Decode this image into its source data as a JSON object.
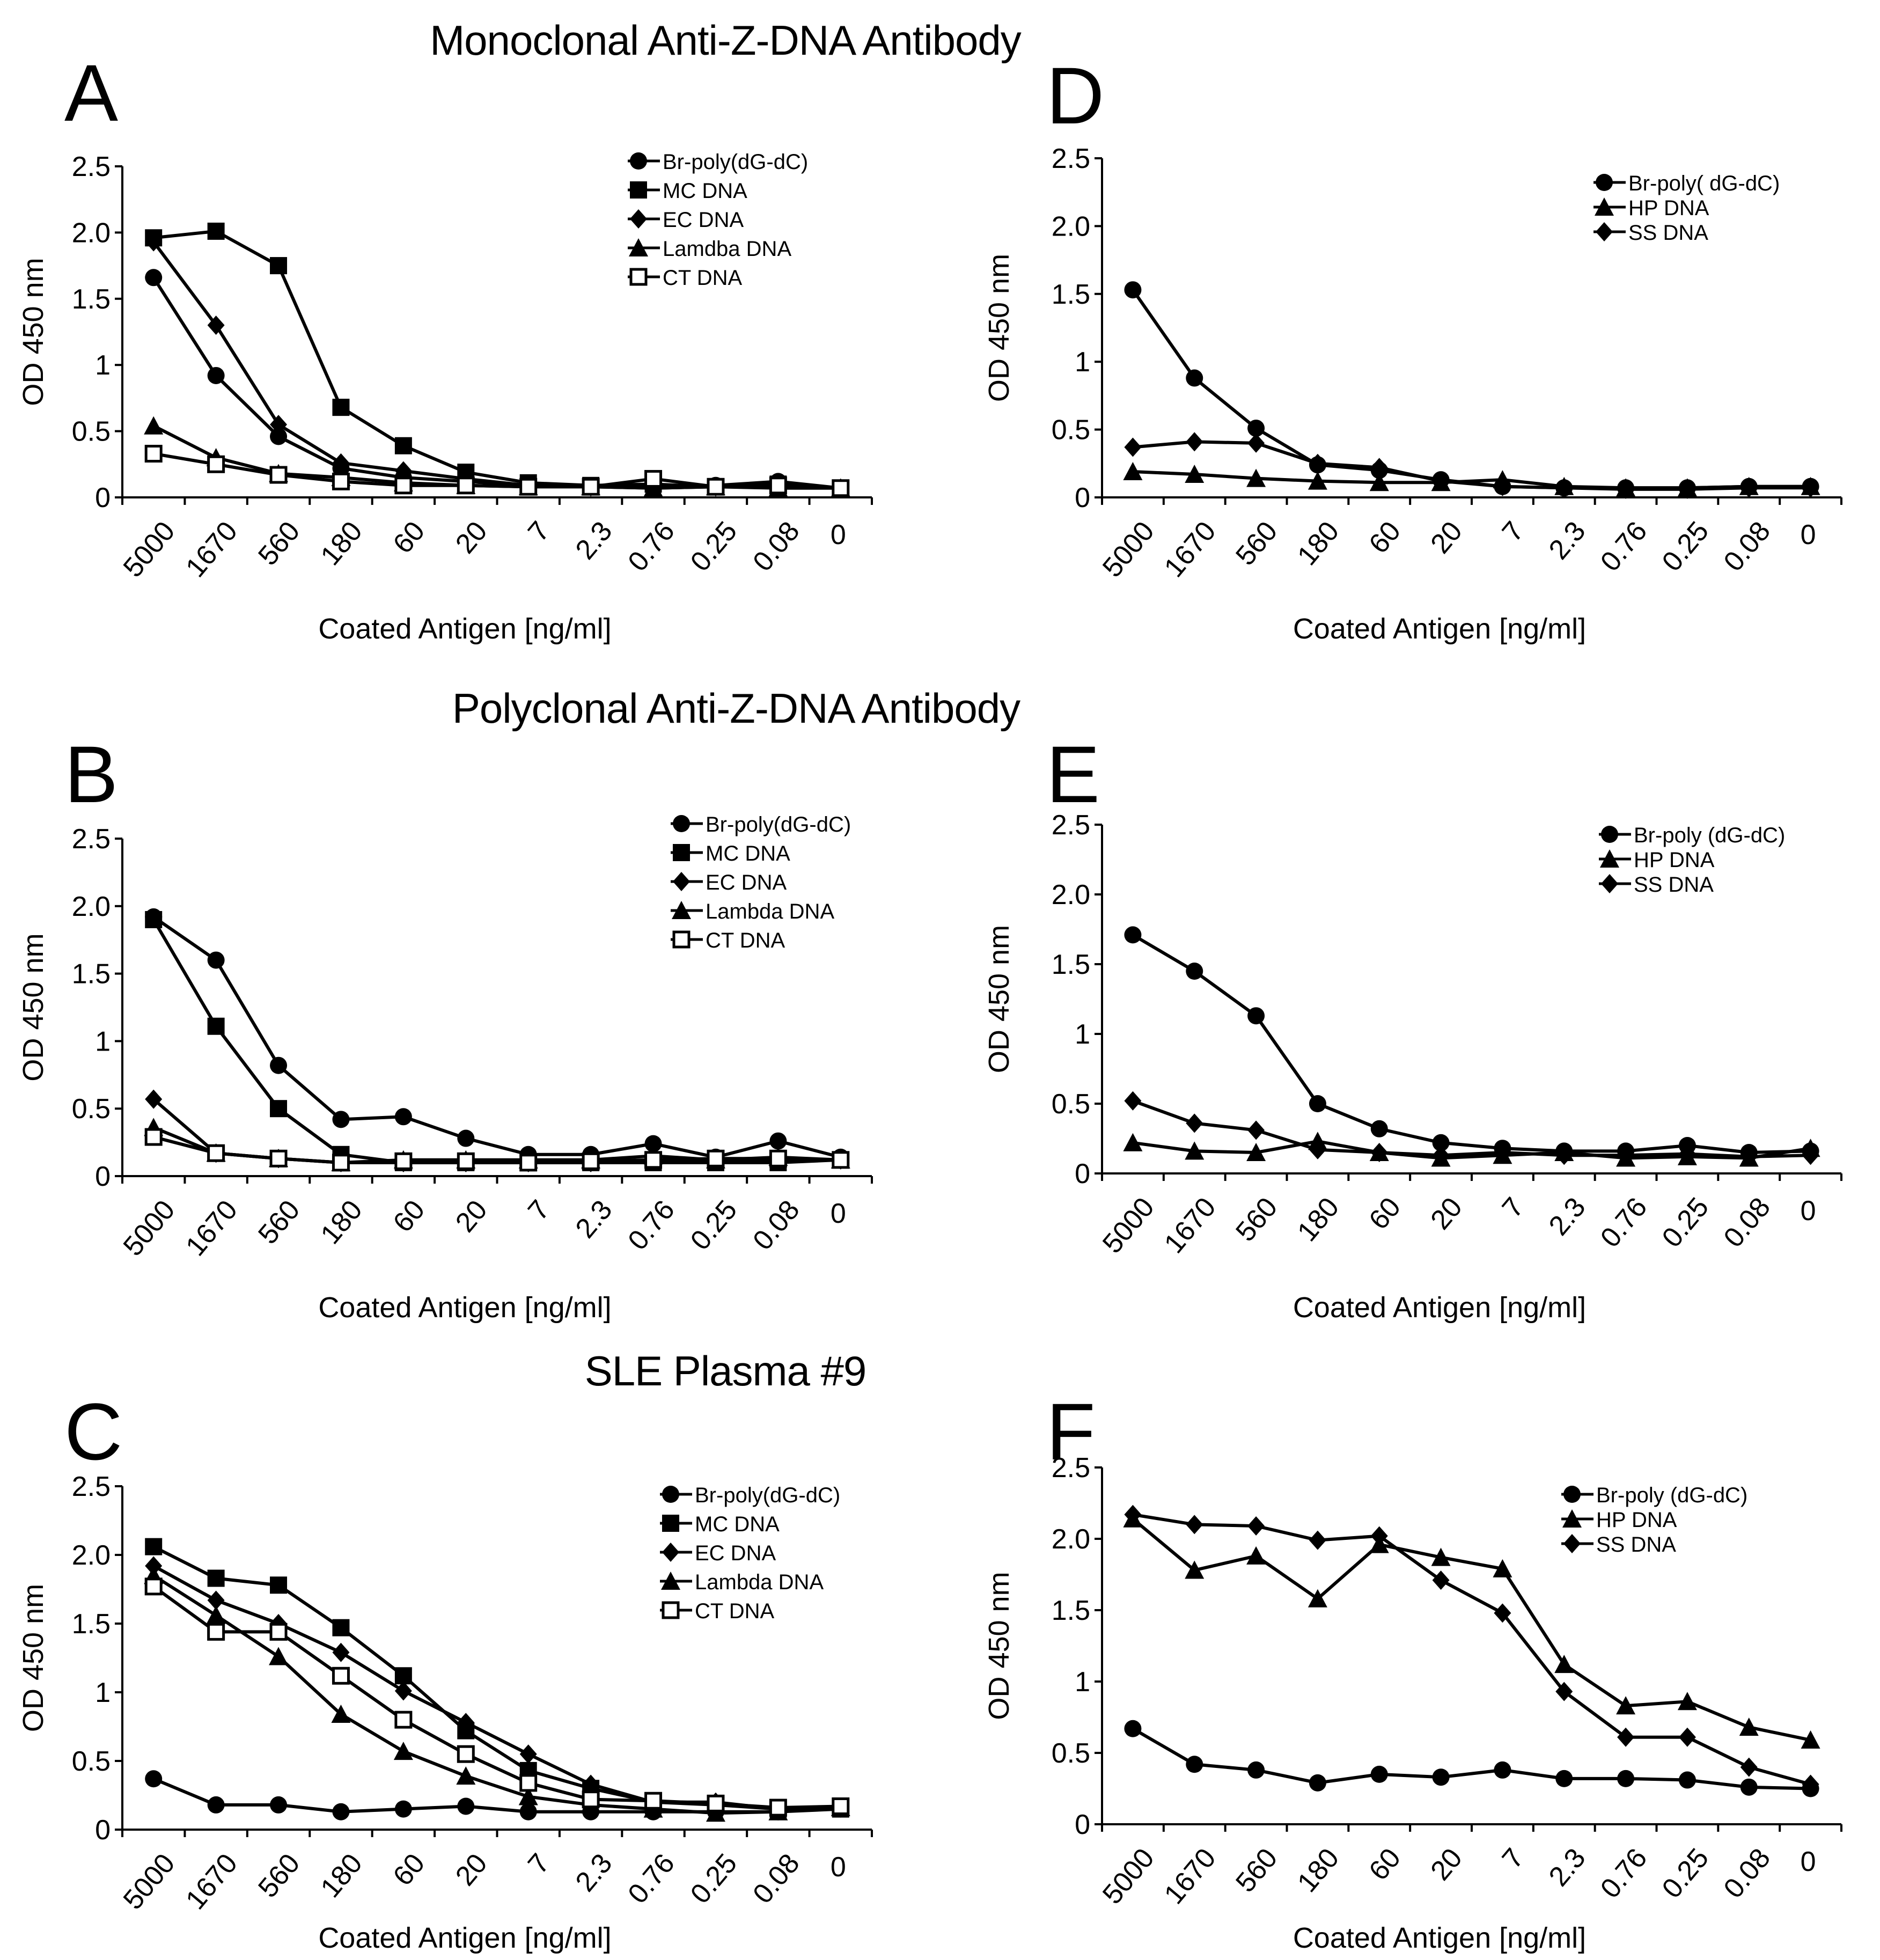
{
  "sections": {
    "mono": "Monoclonal Anti-Z-DNA Antibody",
    "poly": "Polyclonal Anti-Z-DNA Antibody",
    "sle": "SLE Plasma #9"
  },
  "chart_data": [
    {
      "panel": "A",
      "type": "line",
      "xlabel": "Coated Antigen [ng/ml]",
      "ylabel": "OD 450 nm",
      "categories": [
        "5000",
        "1670",
        "560",
        "180",
        "60",
        "20",
        "7",
        "2.3",
        "0.76",
        "0.25",
        "0.08",
        "0"
      ],
      "yticks": [
        "0",
        "0.5",
        "1",
        "1.5",
        "2.0",
        "2.5"
      ],
      "ylim": [
        0,
        2.5
      ],
      "series": [
        {
          "name": "Br-poly(dG-dC)",
          "marker": "circle",
          "values": [
            1.66,
            0.92,
            0.46,
            0.22,
            0.15,
            0.12,
            0.09,
            0.08,
            0.08,
            0.09,
            0.12,
            0.07
          ]
        },
        {
          "name": "MC DNA",
          "marker": "square",
          "values": [
            1.96,
            2.01,
            1.75,
            0.68,
            0.39,
            0.19,
            0.11,
            0.09,
            0.1,
            0.08,
            0.1,
            0.07
          ]
        },
        {
          "name": "EC DNA",
          "marker": "diamond",
          "values": [
            1.93,
            1.3,
            0.55,
            0.26,
            0.2,
            0.14,
            0.09,
            0.08,
            0.07,
            0.08,
            0.08,
            0.07
          ]
        },
        {
          "name": "Lamdba DNA",
          "marker": "triangle",
          "values": [
            0.54,
            0.3,
            0.18,
            0.15,
            0.11,
            0.09,
            0.08,
            0.08,
            0.07,
            0.08,
            0.07,
            0.07
          ]
        },
        {
          "name": "CT DNA",
          "marker": "open-square",
          "values": [
            0.33,
            0.25,
            0.17,
            0.12,
            0.09,
            0.09,
            0.08,
            0.08,
            0.14,
            0.08,
            0.09,
            0.07
          ]
        }
      ]
    },
    {
      "panel": "B",
      "type": "line",
      "xlabel": "Coated Antigen [ng/ml]",
      "ylabel": "OD 450 nm",
      "categories": [
        "5000",
        "1670",
        "560",
        "180",
        "60",
        "20",
        "7",
        "2.3",
        "0.76",
        "0.25",
        "0.08",
        "0"
      ],
      "yticks": [
        "0",
        "0.5",
        "1",
        "1.5",
        "2.0",
        "2.5"
      ],
      "ylim": [
        0,
        2.5
      ],
      "series": [
        {
          "name": "Br-poly(dG-dC)",
          "marker": "circle",
          "values": [
            1.92,
            1.6,
            0.82,
            0.42,
            0.44,
            0.28,
            0.16,
            0.16,
            0.24,
            0.14,
            0.26,
            0.14
          ]
        },
        {
          "name": "MC DNA",
          "marker": "square",
          "values": [
            1.9,
            1.11,
            0.5,
            0.16,
            0.1,
            0.1,
            0.1,
            0.1,
            0.1,
            0.1,
            0.1,
            0.12
          ]
        },
        {
          "name": "EC DNA",
          "marker": "diamond",
          "values": [
            0.57,
            0.17,
            0.13,
            0.1,
            0.1,
            0.1,
            0.1,
            0.1,
            0.12,
            0.12,
            0.12,
            0.12
          ]
        },
        {
          "name": "Lambda DNA",
          "marker": "triangle",
          "values": [
            0.36,
            0.17,
            0.13,
            0.1,
            0.12,
            0.12,
            0.12,
            0.12,
            0.15,
            0.12,
            0.14,
            0.12
          ]
        },
        {
          "name": "CT DNA",
          "marker": "open-square",
          "values": [
            0.29,
            0.17,
            0.13,
            0.1,
            0.11,
            0.11,
            0.1,
            0.11,
            0.12,
            0.13,
            0.13,
            0.12
          ]
        }
      ]
    },
    {
      "panel": "C",
      "type": "line",
      "xlabel": "Coated Antigen [ng/ml]",
      "ylabel": "OD 450 nm",
      "categories": [
        "5000",
        "1670",
        "560",
        "180",
        "60",
        "20",
        "7",
        "2.3",
        "0.76",
        "0.25",
        "0.08",
        "0"
      ],
      "yticks": [
        "0",
        "0.5",
        "1",
        "1.5",
        "2.0",
        "2.5"
      ],
      "ylim": [
        0,
        2.5
      ],
      "series": [
        {
          "name": "Br-poly(dG-dC)",
          "marker": "circle",
          "values": [
            0.37,
            0.18,
            0.18,
            0.13,
            0.15,
            0.17,
            0.13,
            0.13,
            0.13,
            0.13,
            0.13,
            0.15
          ]
        },
        {
          "name": "MC DNA",
          "marker": "square",
          "values": [
            2.06,
            1.83,
            1.78,
            1.47,
            1.12,
            0.72,
            0.43,
            0.3,
            0.2,
            0.18,
            0.15,
            0.15
          ]
        },
        {
          "name": "EC DNA",
          "marker": "diamond",
          "values": [
            1.92,
            1.67,
            1.5,
            1.29,
            1.01,
            0.78,
            0.55,
            0.33,
            0.2,
            0.2,
            0.15,
            0.16
          ]
        },
        {
          "name": "Lambda DNA",
          "marker": "triangle",
          "values": [
            1.85,
            1.56,
            1.26,
            0.84,
            0.57,
            0.39,
            0.24,
            0.18,
            0.15,
            0.12,
            0.13,
            0.16
          ]
        },
        {
          "name": "CT DNA",
          "marker": "open-square",
          "values": [
            1.77,
            1.44,
            1.44,
            1.12,
            0.8,
            0.55,
            0.34,
            0.22,
            0.21,
            0.19,
            0.16,
            0.17
          ]
        }
      ]
    },
    {
      "panel": "D",
      "type": "line",
      "xlabel": "Coated Antigen [ng/ml]",
      "ylabel": "OD 450 nm",
      "categories": [
        "5000",
        "1670",
        "560",
        "180",
        "60",
        "20",
        "7",
        "2.3",
        "0.76",
        "0.25",
        "0.08",
        "0"
      ],
      "yticks": [
        "0",
        "0.5",
        "1",
        "1.5",
        "2.0",
        "2.5"
      ],
      "ylim": [
        0,
        2.5
      ],
      "series": [
        {
          "name": "Br-poly( dG-dC)",
          "marker": "circle",
          "values": [
            1.53,
            0.88,
            0.51,
            0.24,
            0.2,
            0.13,
            0.08,
            0.07,
            0.07,
            0.07,
            0.08,
            0.08
          ]
        },
        {
          "name": "HP DNA",
          "marker": "triangle",
          "values": [
            0.19,
            0.17,
            0.14,
            0.12,
            0.11,
            0.11,
            0.13,
            0.08,
            0.07,
            0.07,
            0.08,
            0.08
          ]
        },
        {
          "name": "SS DNA",
          "marker": "diamond",
          "values": [
            0.37,
            0.41,
            0.4,
            0.25,
            0.22,
            0.12,
            0.08,
            0.07,
            0.06,
            0.06,
            0.07,
            0.07
          ]
        }
      ]
    },
    {
      "panel": "E",
      "type": "line",
      "xlabel": "Coated Antigen [ng/ml]",
      "ylabel": "OD 450 nm",
      "categories": [
        "5000",
        "1670",
        "560",
        "180",
        "60",
        "20",
        "7",
        "2.3",
        "0.76",
        "0.25",
        "0.08",
        "0"
      ],
      "yticks": [
        "0",
        "0.5",
        "1",
        "1.5",
        "2.0",
        "2.5"
      ],
      "ylim": [
        0,
        2.5
      ],
      "series": [
        {
          "name": "Br-poly (dG-dC)",
          "marker": "circle",
          "values": [
            1.71,
            1.45,
            1.13,
            0.5,
            0.32,
            0.22,
            0.18,
            0.16,
            0.16,
            0.2,
            0.15,
            0.16
          ]
        },
        {
          "name": "HP DNA",
          "marker": "triangle",
          "values": [
            0.22,
            0.16,
            0.15,
            0.23,
            0.15,
            0.11,
            0.13,
            0.15,
            0.11,
            0.12,
            0.11,
            0.18
          ]
        },
        {
          "name": "SS DNA",
          "marker": "diamond",
          "values": [
            0.52,
            0.36,
            0.31,
            0.17,
            0.15,
            0.13,
            0.15,
            0.13,
            0.13,
            0.14,
            0.12,
            0.13
          ]
        }
      ]
    },
    {
      "panel": "F",
      "type": "line",
      "xlabel": "Coated Antigen [ng/ml]",
      "ylabel": "OD 450 nm",
      "categories": [
        "5000",
        "1670",
        "560",
        "180",
        "60",
        "20",
        "7",
        "2.3",
        "0.76",
        "0.25",
        "0.08",
        "0"
      ],
      "yticks": [
        "0",
        "0.5",
        "1",
        "1.5",
        "2.0",
        "2.5"
      ],
      "ylim": [
        0,
        2.5
      ],
      "series": [
        {
          "name": "Br-poly (dG-dC)",
          "marker": "circle",
          "values": [
            0.67,
            0.42,
            0.38,
            0.29,
            0.35,
            0.33,
            0.38,
            0.32,
            0.32,
            0.31,
            0.26,
            0.25
          ]
        },
        {
          "name": "HP DNA",
          "marker": "triangle",
          "values": [
            2.14,
            1.78,
            1.88,
            1.58,
            1.96,
            1.87,
            1.79,
            1.12,
            0.83,
            0.86,
            0.68,
            0.59
          ]
        },
        {
          "name": "SS DNA",
          "marker": "diamond",
          "values": [
            2.17,
            2.1,
            2.09,
            1.99,
            2.02,
            1.71,
            1.48,
            0.93,
            0.61,
            0.61,
            0.4,
            0.28
          ]
        }
      ]
    }
  ]
}
